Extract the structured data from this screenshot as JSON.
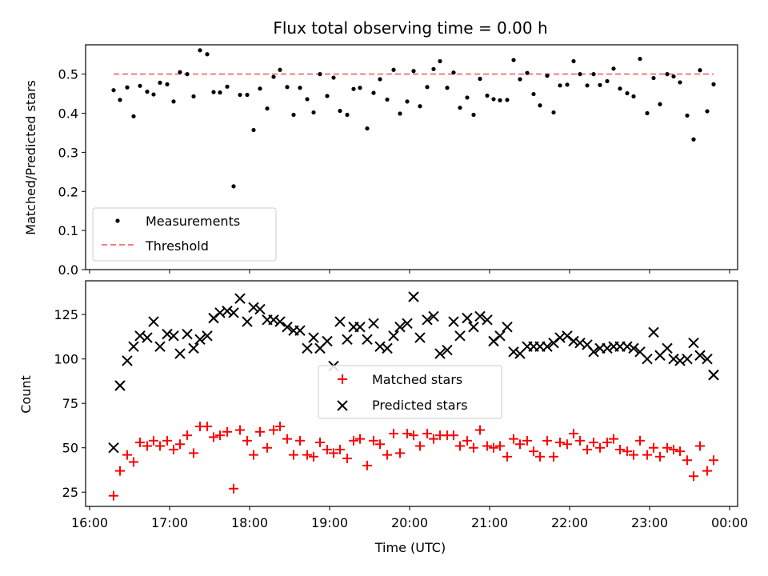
{
  "chart_data": [
    {
      "type": "scatter",
      "title": "Flux total observing time = 0.00 h",
      "xlabel": "",
      "ylabel": "Matched/Predicted stars",
      "ylim": [
        0,
        0.575
      ],
      "yticks": [
        "0.0",
        "0.1",
        "0.2",
        "0.3",
        "0.4",
        "0.5"
      ],
      "legend": {
        "placement": "lower-left",
        "entries": [
          "Measurements",
          "Threshold"
        ]
      },
      "series": [
        {
          "name": "Measurements",
          "marker": "dot",
          "color": "#000000",
          "x": [
            16.3,
            16.38,
            16.47,
            16.55,
            16.63,
            16.72,
            16.8,
            16.88,
            16.97,
            17.05,
            17.13,
            17.22,
            17.3,
            17.38,
            17.47,
            17.55,
            17.63,
            17.72,
            17.8,
            17.88,
            17.97,
            18.05,
            18.13,
            18.22,
            18.3,
            18.38,
            18.47,
            18.55,
            18.63,
            18.72,
            18.8,
            18.88,
            18.97,
            19.05,
            19.13,
            19.22,
            19.3,
            19.38,
            19.47,
            19.55,
            19.63,
            19.72,
            19.8,
            19.88,
            19.97,
            20.05,
            20.13,
            20.22,
            20.3,
            20.38,
            20.47,
            20.55,
            20.63,
            20.72,
            20.8,
            20.88,
            20.97,
            21.05,
            21.13,
            21.22,
            21.3,
            21.38,
            21.47,
            21.55,
            21.63,
            21.72,
            21.8,
            21.88,
            21.97,
            22.05,
            22.13,
            22.22,
            22.3,
            22.38,
            22.47,
            22.55,
            22.63,
            22.72,
            22.8,
            22.88,
            22.97,
            23.05,
            23.13,
            23.22,
            23.3,
            23.38,
            23.47,
            23.55,
            23.63,
            23.72,
            23.8
          ],
          "y": [
            0.459,
            0.434,
            0.466,
            0.392,
            0.47,
            0.455,
            0.448,
            0.478,
            0.474,
            0.43,
            0.505,
            0.5,
            0.443,
            0.561,
            0.551,
            0.454,
            0.453,
            0.468,
            0.213,
            0.447,
            0.447,
            0.357,
            0.463,
            0.412,
            0.493,
            0.511,
            0.467,
            0.396,
            0.465,
            0.436,
            0.402,
            0.5,
            0.444,
            0.491,
            0.406,
            0.396,
            0.462,
            0.465,
            0.361,
            0.452,
            0.487,
            0.435,
            0.511,
            0.399,
            0.43,
            0.508,
            0.418,
            0.467,
            0.513,
            0.533,
            0.465,
            0.504,
            0.414,
            0.44,
            0.396,
            0.488,
            0.445,
            0.436,
            0.433,
            0.434,
            0.536,
            0.487,
            0.503,
            0.449,
            0.42,
            0.496,
            0.402,
            0.471,
            0.473,
            0.533,
            0.5,
            0.471,
            0.5,
            0.472,
            0.482,
            0.514,
            0.463,
            0.451,
            0.443,
            0.539,
            0.4,
            0.49,
            0.423,
            0.5,
            0.494,
            0.479,
            0.394,
            0.333,
            0.51,
            0.405,
            0.474
          ]
        },
        {
          "name": "Threshold",
          "marker": "dashed-line",
          "color": "#f08080",
          "x": [
            16.3,
            23.8
          ],
          "y": [
            0.5,
            0.5
          ]
        }
      ]
    },
    {
      "type": "scatter",
      "title": "",
      "xlabel": "Time (UTC)",
      "ylabel": "Count",
      "ylim": [
        17,
        144
      ],
      "xlim": [
        15.95,
        24.1
      ],
      "yticks": [
        "25",
        "50",
        "75",
        "100",
        "125"
      ],
      "xticks": [
        "16:00",
        "17:00",
        "18:00",
        "19:00",
        "20:00",
        "21:00",
        "22:00",
        "23:00",
        "00:00"
      ],
      "legend": {
        "placement": "center",
        "entries": [
          "Matched stars",
          "Predicted stars"
        ]
      },
      "series": [
        {
          "name": "Matched stars",
          "marker": "plus",
          "color": "#ff0000",
          "x": [
            16.3,
            16.38,
            16.47,
            16.55,
            16.63,
            16.72,
            16.8,
            16.88,
            16.97,
            17.05,
            17.13,
            17.22,
            17.3,
            17.38,
            17.47,
            17.55,
            17.63,
            17.72,
            17.8,
            17.88,
            17.97,
            18.05,
            18.13,
            18.22,
            18.3,
            18.38,
            18.47,
            18.55,
            18.63,
            18.72,
            18.8,
            18.88,
            18.97,
            19.05,
            19.13,
            19.22,
            19.3,
            19.38,
            19.47,
            19.55,
            19.63,
            19.72,
            19.8,
            19.88,
            19.97,
            20.05,
            20.13,
            20.22,
            20.3,
            20.38,
            20.47,
            20.55,
            20.63,
            20.72,
            20.8,
            20.88,
            20.97,
            21.05,
            21.13,
            21.22,
            21.3,
            21.38,
            21.47,
            21.55,
            21.63,
            21.72,
            21.8,
            21.88,
            21.97,
            22.05,
            22.13,
            22.22,
            22.3,
            22.38,
            22.47,
            22.55,
            22.63,
            22.72,
            22.8,
            22.88,
            22.97,
            23.05,
            23.13,
            23.22,
            23.3,
            23.38,
            23.47,
            23.55,
            23.63,
            23.72,
            23.8
          ],
          "y": [
            23,
            37,
            46,
            42,
            53,
            51,
            54,
            51,
            54,
            49,
            52,
            57,
            47,
            62,
            62,
            56,
            57,
            59,
            27,
            60,
            54,
            46,
            59,
            50,
            60,
            62,
            55,
            46,
            54,
            46,
            45,
            53,
            49,
            47,
            49,
            44,
            54,
            55,
            40,
            54,
            52,
            46,
            58,
            47,
            58,
            57,
            51,
            58,
            55,
            57,
            57,
            57,
            51,
            54,
            50,
            60,
            51,
            50,
            51,
            45,
            55,
            52,
            54,
            48,
            45,
            54,
            45,
            53,
            52,
            58,
            54,
            49,
            53,
            50,
            53,
            55,
            49,
            48,
            46,
            54,
            46,
            50,
            45,
            50,
            49,
            48,
            43,
            34,
            51,
            37,
            43
          ]
        },
        {
          "name": "Predicted stars",
          "marker": "x",
          "color": "#000000",
          "x": [
            16.3,
            16.38,
            16.47,
            16.55,
            16.63,
            16.72,
            16.8,
            16.88,
            16.97,
            17.05,
            17.13,
            17.22,
            17.3,
            17.38,
            17.47,
            17.55,
            17.63,
            17.72,
            17.8,
            17.88,
            17.97,
            18.05,
            18.13,
            18.22,
            18.3,
            18.38,
            18.47,
            18.55,
            18.63,
            18.72,
            18.8,
            18.88,
            18.97,
            19.05,
            19.13,
            19.22,
            19.3,
            19.38,
            19.47,
            19.55,
            19.63,
            19.72,
            19.8,
            19.88,
            19.97,
            20.05,
            20.13,
            20.22,
            20.3,
            20.38,
            20.47,
            20.55,
            20.63,
            20.72,
            20.8,
            20.88,
            20.97,
            21.05,
            21.13,
            21.22,
            21.3,
            21.38,
            21.47,
            21.55,
            21.63,
            21.72,
            21.8,
            21.88,
            21.97,
            22.05,
            22.13,
            22.22,
            22.3,
            22.38,
            22.47,
            22.55,
            22.63,
            22.72,
            22.8,
            22.88,
            22.97,
            23.05,
            23.13,
            23.22,
            23.3,
            23.38,
            23.47,
            23.55,
            23.63,
            23.72,
            23.8
          ],
          "y": [
            50,
            85,
            99,
            107,
            113,
            112,
            121,
            107,
            114,
            113,
            103,
            114,
            106,
            111,
            113,
            123,
            126,
            127,
            126,
            134,
            121,
            129,
            128,
            122,
            122,
            121,
            118,
            116,
            116,
            106,
            112,
            106,
            110,
            96,
            121,
            111,
            118,
            118,
            111,
            120,
            107,
            106,
            113,
            118,
            120,
            135,
            112,
            122,
            124,
            103,
            105,
            121,
            113,
            123,
            118,
            124,
            122,
            110,
            113,
            118,
            104,
            103,
            107,
            107,
            107,
            107,
            109,
            112,
            113,
            110,
            109,
            108,
            104,
            106,
            106,
            107,
            107,
            107,
            106,
            104,
            100,
            115,
            102,
            106,
            100,
            99,
            100,
            109,
            102,
            100,
            91
          ]
        },
        {
          "name": "",
          "marker": "x",
          "color": "#000000",
          "x": [
            23.8
          ],
          "y": [
            91
          ]
        }
      ]
    }
  ]
}
